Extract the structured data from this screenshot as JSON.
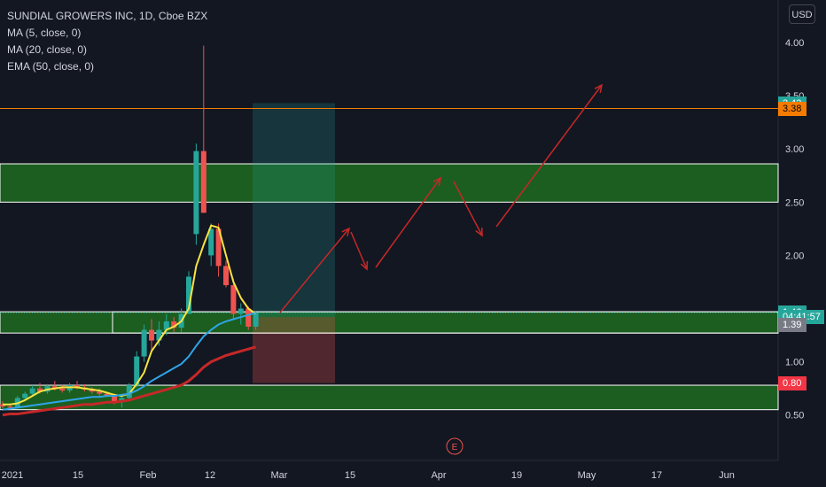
{
  "legend": {
    "title": "SUNDIAL GROWERS INC, 1D, Cboe BZX",
    "ma5": "MA (5, close, 0)",
    "ma20": "MA (20, close, 0)",
    "ema50": "EMA (50, close, 0)"
  },
  "currency_button": "USD",
  "event_marker": "E",
  "price_tags": [
    {
      "label": "3.43",
      "value": 3.43,
      "bg": "#26a69a",
      "fg": "#ffffff"
    },
    {
      "label": "3.38",
      "value": 3.38,
      "bg": "#f57c00",
      "fg": "#000000"
    },
    {
      "label": "1.46",
      "value": 1.46,
      "bg": "#26a69a",
      "fg": "#ffffff"
    },
    {
      "label": "04:41:57",
      "value": 1.42,
      "bg": "#26a69a",
      "fg": "#ffffff"
    },
    {
      "label": "1.39",
      "value": 1.35,
      "bg": "#787b86",
      "fg": "#ffffff"
    },
    {
      "label": "0.80",
      "value": 0.8,
      "bg": "#f23645",
      "fg": "#ffffff"
    }
  ],
  "colors": {
    "background": "#131722",
    "up": "#26a69a",
    "down": "#ef5350",
    "ma5": "#f7e440",
    "ma20": "#2fa4e7",
    "ema50": "#c62828",
    "zone_fill": "#1b5e20",
    "arrows": "#c62828",
    "orange_line": "#f57c00"
  },
  "chart_data": {
    "type": "candlestick",
    "ylim": [
      0.3,
      4.4
    ],
    "yticks": [
      "4.00",
      "3.50",
      "3.00",
      "2.50",
      "2.00",
      "1.50",
      "1.00",
      "0.50"
    ],
    "xtick_labels": [
      "2021",
      "15",
      "Feb",
      "12",
      "Mar",
      "15",
      "Apr",
      "19",
      "May",
      "17",
      "Jun"
    ],
    "candles": [
      {
        "o": 0.6,
        "h": 0.63,
        "l": 0.56,
        "c": 0.58
      },
      {
        "o": 0.58,
        "h": 0.6,
        "l": 0.55,
        "c": 0.57
      },
      {
        "o": 0.57,
        "h": 0.68,
        "l": 0.56,
        "c": 0.66
      },
      {
        "o": 0.66,
        "h": 0.72,
        "l": 0.63,
        "c": 0.7
      },
      {
        "o": 0.7,
        "h": 0.78,
        "l": 0.68,
        "c": 0.75
      },
      {
        "o": 0.75,
        "h": 0.8,
        "l": 0.7,
        "c": 0.72
      },
      {
        "o": 0.72,
        "h": 0.79,
        "l": 0.7,
        "c": 0.77
      },
      {
        "o": 0.77,
        "h": 0.82,
        "l": 0.73,
        "c": 0.75
      },
      {
        "o": 0.75,
        "h": 0.78,
        "l": 0.71,
        "c": 0.73
      },
      {
        "o": 0.73,
        "h": 0.8,
        "l": 0.71,
        "c": 0.78
      },
      {
        "o": 0.78,
        "h": 0.82,
        "l": 0.74,
        "c": 0.76
      },
      {
        "o": 0.76,
        "h": 0.79,
        "l": 0.72,
        "c": 0.74
      },
      {
        "o": 0.74,
        "h": 0.76,
        "l": 0.7,
        "c": 0.72
      },
      {
        "o": 0.72,
        "h": 0.75,
        "l": 0.68,
        "c": 0.7
      },
      {
        "o": 0.7,
        "h": 0.72,
        "l": 0.67,
        "c": 0.68
      },
      {
        "o": 0.68,
        "h": 0.7,
        "l": 0.6,
        "c": 0.62
      },
      {
        "o": 0.62,
        "h": 0.68,
        "l": 0.57,
        "c": 0.66
      },
      {
        "o": 0.66,
        "h": 0.8,
        "l": 0.64,
        "c": 0.78
      },
      {
        "o": 0.78,
        "h": 1.1,
        "l": 0.76,
        "c": 1.05
      },
      {
        "o": 1.05,
        "h": 1.35,
        "l": 1.0,
        "c": 1.3
      },
      {
        "o": 1.3,
        "h": 1.4,
        "l": 1.1,
        "c": 1.2
      },
      {
        "o": 1.2,
        "h": 1.38,
        "l": 1.15,
        "c": 1.3
      },
      {
        "o": 1.3,
        "h": 1.45,
        "l": 1.25,
        "c": 1.38
      },
      {
        "o": 1.38,
        "h": 1.42,
        "l": 1.28,
        "c": 1.32
      },
      {
        "o": 1.32,
        "h": 1.5,
        "l": 1.28,
        "c": 1.45
      },
      {
        "o": 1.45,
        "h": 1.85,
        "l": 1.45,
        "c": 1.8
      },
      {
        "o": 2.2,
        "h": 3.05,
        "l": 2.1,
        "c": 2.98
      },
      {
        "o": 2.98,
        "h": 3.97,
        "l": 2.4,
        "c": 2.4
      },
      {
        "o": 2.0,
        "h": 2.3,
        "l": 1.9,
        "c": 2.25
      },
      {
        "o": 2.25,
        "h": 2.3,
        "l": 1.8,
        "c": 1.9
      },
      {
        "o": 1.9,
        "h": 1.95,
        "l": 1.7,
        "c": 1.72
      },
      {
        "o": 1.72,
        "h": 1.78,
        "l": 1.4,
        "c": 1.45
      },
      {
        "o": 1.45,
        "h": 1.55,
        "l": 1.35,
        "c": 1.5
      },
      {
        "o": 1.5,
        "h": 1.52,
        "l": 1.3,
        "c": 1.33
      },
      {
        "o": 1.33,
        "h": 1.48,
        "l": 1.3,
        "c": 1.46
      }
    ],
    "series": [
      {
        "name": "MA (5, close, 0)",
        "color": "#f7e440",
        "values": [
          0.6,
          0.6,
          0.61,
          0.64,
          0.68,
          0.72,
          0.74,
          0.75,
          0.76,
          0.76,
          0.76,
          0.75,
          0.74,
          0.73,
          0.71,
          0.69,
          0.68,
          0.7,
          0.79,
          0.9,
          1.1,
          1.2,
          1.3,
          1.33,
          1.38,
          1.5,
          1.9,
          2.1,
          2.28,
          2.26,
          2.0,
          1.75,
          1.6,
          1.5,
          1.45
        ]
      },
      {
        "name": "MA (20, close, 0)",
        "color": "#2fa4e7",
        "values": [
          0.55,
          0.56,
          0.57,
          0.58,
          0.59,
          0.6,
          0.61,
          0.62,
          0.63,
          0.64,
          0.65,
          0.66,
          0.67,
          0.67,
          0.68,
          0.68,
          0.69,
          0.7,
          0.73,
          0.77,
          0.82,
          0.86,
          0.9,
          0.94,
          0.98,
          1.05,
          1.15,
          1.24,
          1.3,
          1.35,
          1.38,
          1.4,
          1.42,
          1.44,
          1.46
        ]
      },
      {
        "name": "EMA (50, close, 0)",
        "color": "#c62828",
        "values": [
          0.5,
          0.51,
          0.51,
          0.52,
          0.53,
          0.54,
          0.55,
          0.56,
          0.57,
          0.58,
          0.59,
          0.6,
          0.6,
          0.61,
          0.62,
          0.62,
          0.63,
          0.64,
          0.66,
          0.68,
          0.7,
          0.72,
          0.74,
          0.76,
          0.78,
          0.82,
          0.88,
          0.95,
          1.0,
          1.03,
          1.06,
          1.08,
          1.1,
          1.12,
          1.14
        ]
      }
    ],
    "zones": [
      {
        "top": 2.86,
        "bottom": 2.5
      },
      {
        "top": 1.47,
        "bottom": 1.27
      },
      {
        "top": 0.78,
        "bottom": 0.55
      }
    ],
    "horizontal_lines": [
      {
        "value": 3.38,
        "color": "#f57c00"
      },
      {
        "value": 1.46,
        "color": "#26a69a",
        "dotted": true
      }
    ],
    "position_box": {
      "entry": 1.42,
      "target": 3.43,
      "stop": 0.8
    }
  }
}
